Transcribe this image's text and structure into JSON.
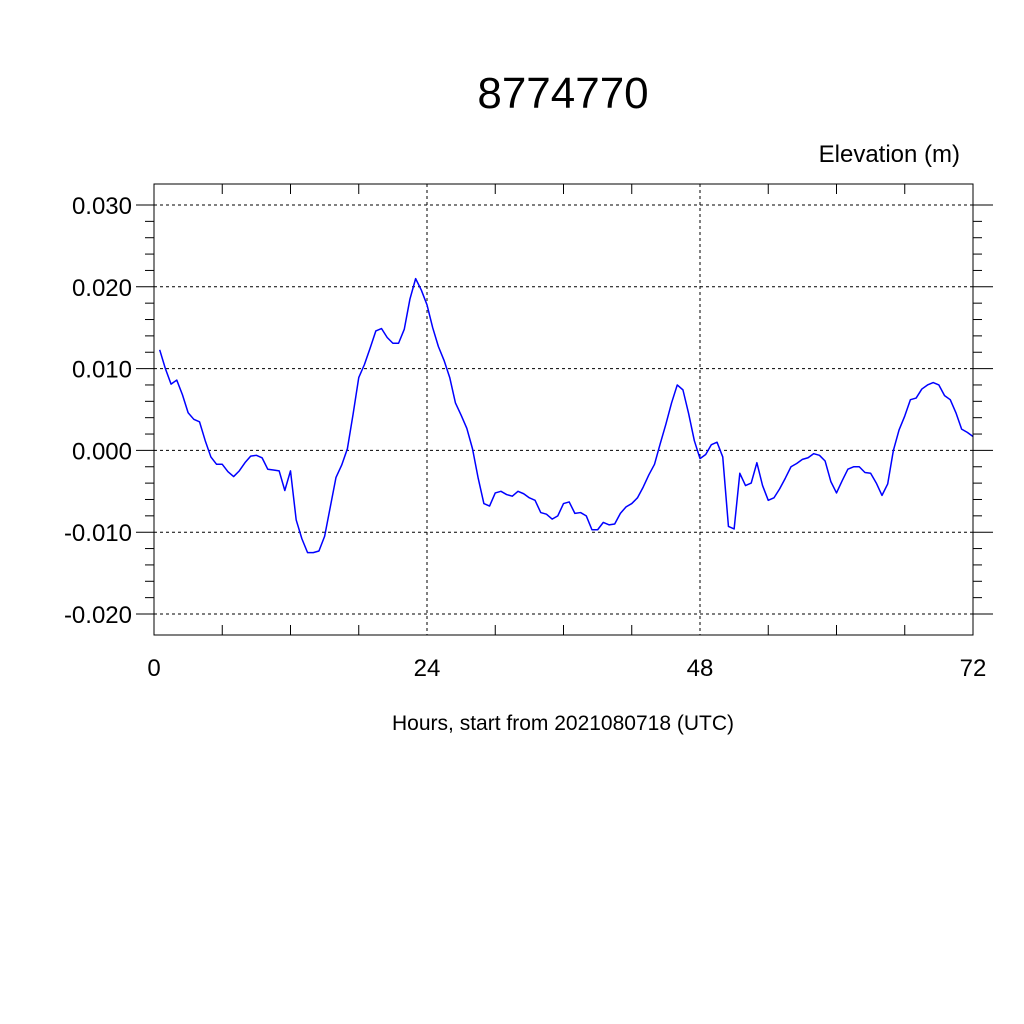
{
  "chart_data": {
    "type": "line",
    "title": "8774770",
    "ylabel": "Elevation (m)",
    "xlabel": "Hours, start from 2021080718 (UTC)",
    "xlim": [
      0,
      72
    ],
    "ylim": [
      -0.02,
      0.03
    ],
    "x_ticks": [
      0,
      24,
      48,
      72
    ],
    "x_tick_labels": [
      "0",
      "24",
      "48",
      "72"
    ],
    "y_ticks": [
      -0.02,
      -0.01,
      0.0,
      0.01,
      0.02,
      0.03
    ],
    "y_tick_labels": [
      "-0.020",
      "-0.010",
      "0.000",
      "0.010",
      "0.020",
      "0.030"
    ],
    "grid": true,
    "series_color": "#0000ff",
    "series": [
      {
        "x": [
          0.5,
          1.0,
          1.5,
          2.0,
          2.5,
          3.0,
          3.5,
          4.0,
          4.5,
          5.0,
          5.5,
          6.0,
          6.5,
          7.0,
          7.5,
          8.0,
          8.5,
          9.0,
          9.5,
          10.0,
          10.5,
          11.0,
          11.5,
          12.0,
          12.5,
          13.0,
          13.5,
          14.0,
          14.5,
          15.0,
          15.5,
          16.0,
          16.5,
          17.0,
          17.5,
          18.0,
          18.5,
          19.0,
          19.5,
          20.0,
          20.5,
          21.0,
          21.5,
          22.0,
          22.5,
          23.0,
          23.5,
          24.0,
          24.5,
          25.0,
          25.5,
          26.0,
          26.5,
          27.0,
          27.5,
          28.0,
          28.5,
          29.0,
          29.5,
          30.0,
          30.5,
          31.0,
          31.5,
          32.0,
          32.5,
          33.0,
          33.5,
          34.0,
          34.5,
          35.0,
          35.5,
          36.0,
          36.5,
          37.0,
          37.5,
          38.0,
          38.5,
          39.0,
          39.5,
          40.0,
          40.5,
          41.0,
          41.5,
          42.0,
          42.5,
          43.0,
          43.5,
          44.0,
          44.5,
          45.0,
          45.5,
          46.0,
          46.5,
          47.0,
          47.5,
          48.0,
          48.5,
          49.0,
          49.5,
          50.0,
          50.5,
          51.0,
          51.5,
          52.0,
          52.5,
          53.0,
          53.5,
          54.0,
          54.5,
          55.0,
          55.5,
          56.0,
          56.5,
          57.0,
          57.5,
          58.0,
          58.5,
          59.0,
          59.5,
          60.0,
          60.5,
          61.0,
          61.5,
          62.0,
          62.5,
          63.0,
          63.5,
          64.0,
          64.5,
          65.0,
          65.5,
          66.0,
          66.5,
          67.0,
          67.5,
          68.0,
          68.5,
          69.0,
          69.5,
          70.0,
          70.5,
          71.0,
          71.5,
          72.0
        ],
        "values": [
          0.0123,
          0.01,
          0.0081,
          0.0086,
          0.0068,
          0.0046,
          0.0038,
          0.0035,
          0.0012,
          -0.0008,
          -0.0017,
          -0.0017,
          -0.0026,
          -0.0032,
          -0.0025,
          -0.0015,
          -0.0007,
          -0.0006,
          -0.0009,
          -0.0023,
          -0.0024,
          -0.0025,
          -0.0049,
          -0.0025,
          -0.0085,
          -0.0108,
          -0.0125,
          -0.0125,
          -0.0123,
          -0.0105,
          -0.0069,
          -0.0033,
          -0.0018,
          0.0002,
          0.0044,
          0.0089,
          0.0105,
          0.0125,
          0.0146,
          0.0149,
          0.0138,
          0.0131,
          0.0131,
          0.0148,
          0.0185,
          0.021,
          0.0196,
          0.0178,
          0.015,
          0.0127,
          0.011,
          0.0089,
          0.0058,
          0.0043,
          0.0027,
          0.0002,
          -0.0034,
          -0.0065,
          -0.0068,
          -0.0052,
          -0.005,
          -0.0054,
          -0.0056,
          -0.005,
          -0.0053,
          -0.0058,
          -0.0061,
          -0.0076,
          -0.0078,
          -0.0084,
          -0.008,
          -0.0065,
          -0.0063,
          -0.0077,
          -0.0076,
          -0.008,
          -0.0097,
          -0.0097,
          -0.0088,
          -0.0091,
          -0.009,
          -0.0077,
          -0.0069,
          -0.0065,
          -0.0058,
          -0.0045,
          -0.003,
          -0.0017,
          0.0008,
          0.0032,
          0.0058,
          0.008,
          0.0074,
          0.0045,
          0.0012,
          -0.001,
          -0.0005,
          0.0007,
          0.001,
          -0.0008,
          -0.0093,
          -0.0096,
          -0.0028,
          -0.0043,
          -0.004,
          -0.0015,
          -0.0043,
          -0.0061,
          -0.0058,
          -0.0047,
          -0.0034,
          -0.002,
          -0.0016,
          -0.0011,
          -0.0009,
          -0.0004,
          -0.0006,
          -0.0013,
          -0.0038,
          -0.0052,
          -0.0037,
          -0.0023,
          -0.002,
          -0.002,
          -0.0027,
          -0.0028,
          -0.004,
          -0.0055,
          -0.0041,
          0.0,
          0.0025,
          0.0042,
          0.0062,
          0.0064,
          0.0075,
          0.008,
          0.0083,
          0.008,
          0.0067,
          0.0062,
          0.0046,
          0.0026,
          0.0022,
          0.0017
        ]
      }
    ]
  }
}
